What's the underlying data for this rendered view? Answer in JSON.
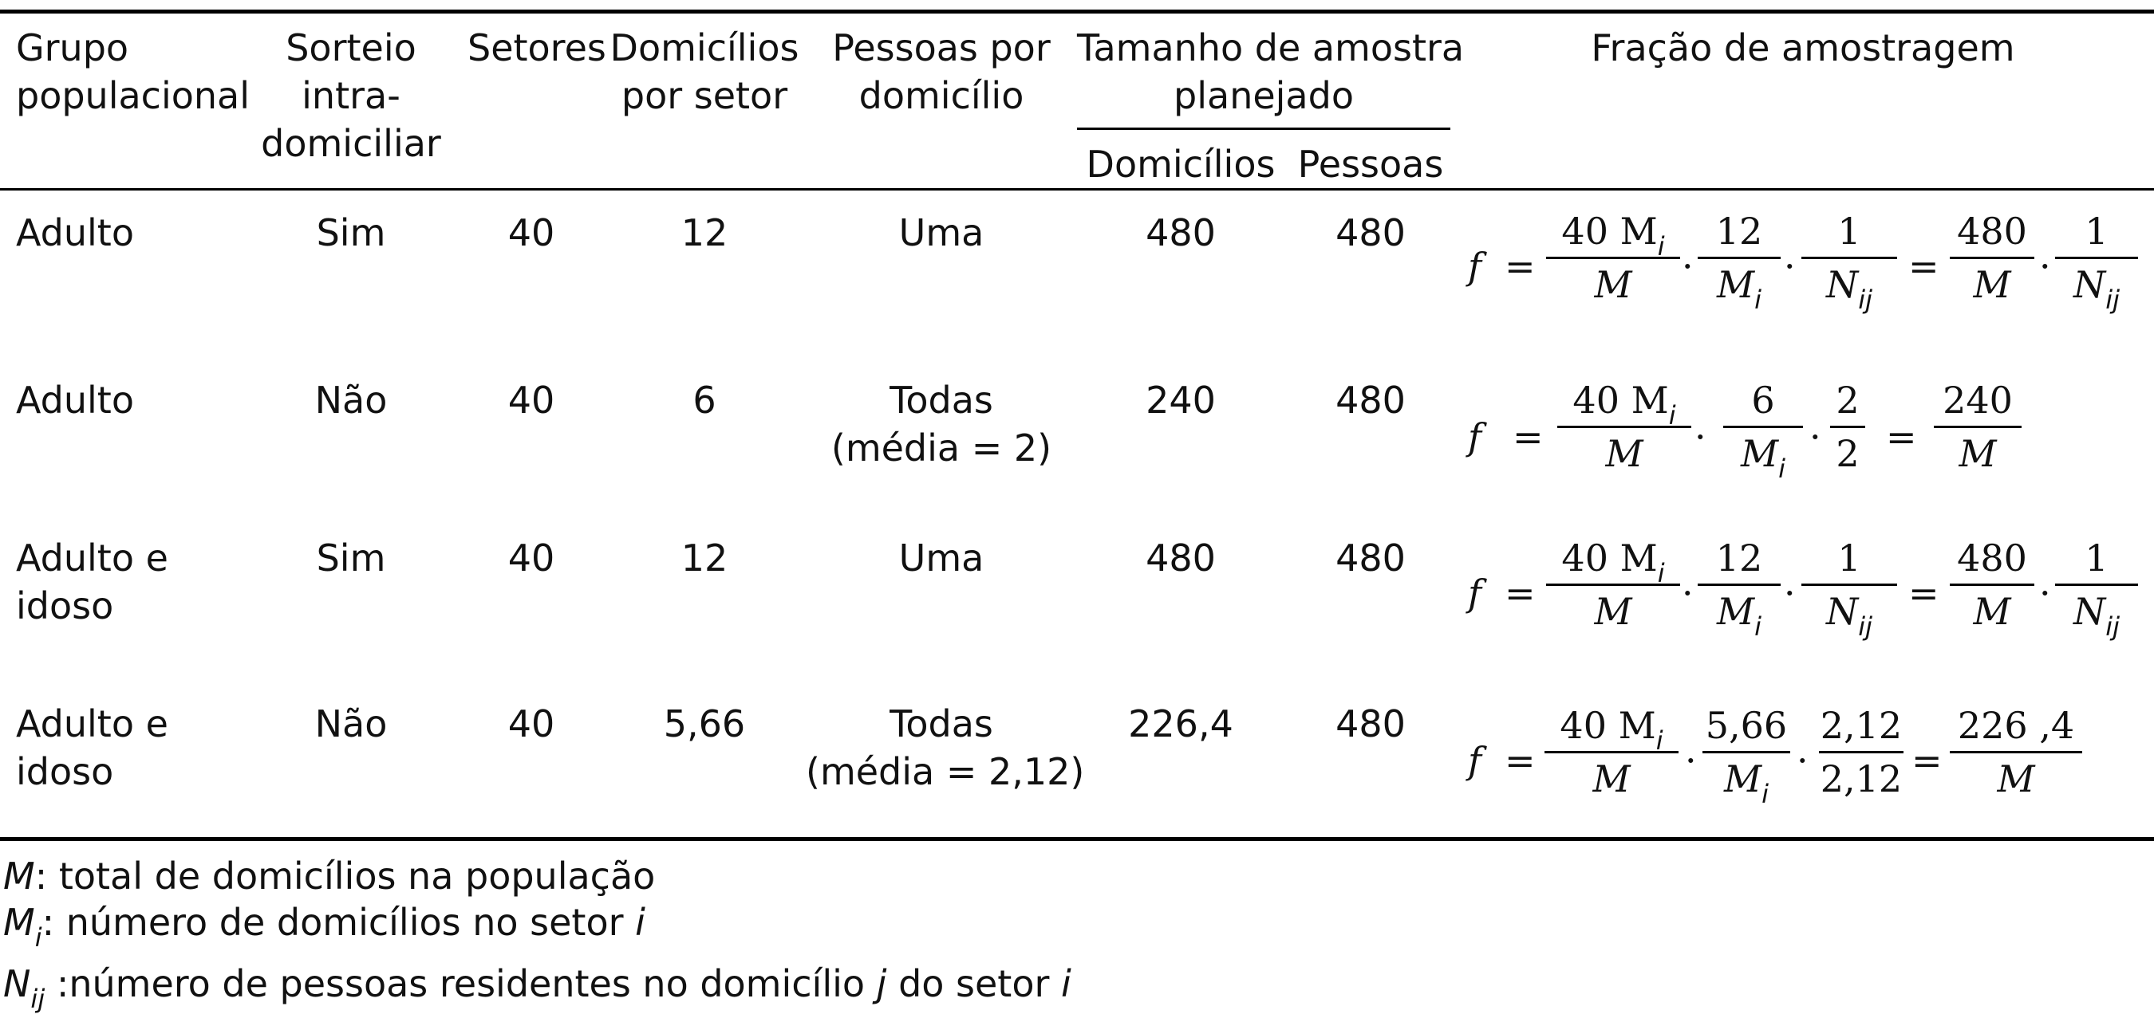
{
  "header": {
    "grupo": [
      "Grupo",
      "populacional"
    ],
    "sorteio": [
      "Sorteio",
      "intra-",
      "domiciliar"
    ],
    "setores": "Setores",
    "domicilios_setor": [
      "Domicílios",
      "por setor"
    ],
    "pessoas_domicilio": [
      "Pessoas por",
      "domicílio"
    ],
    "tamanho": [
      "Tamanho de amostra",
      "planejado"
    ],
    "sub_domicilios": "Domicílios",
    "sub_pessoas": "Pessoas",
    "fracao": "Fração de amostragem"
  },
  "rows": [
    {
      "grupo": [
        "Adulto"
      ],
      "sorteio": "Sim",
      "setores": "40",
      "dom_setor": "12",
      "pessoas": [
        "Uma"
      ],
      "tam_dom": "480",
      "tam_pes": "480",
      "formula": {
        "f": "f",
        "eq": "=",
        "dot": "·",
        "t1_num": "40 M",
        "t1_num_sub": "i",
        "t1_den": "M",
        "t2_num": "12",
        "t2_den": "M",
        "t2_den_sub": "i",
        "t3_num": "1",
        "t3_den": "N",
        "t3_den_sub": "ij",
        "r1_num": "480",
        "r1_den": "M",
        "r2_num": "1",
        "r2_den": "N",
        "r2_den_sub": "ij"
      }
    },
    {
      "grupo": [
        "Adulto"
      ],
      "sorteio": "Não",
      "setores": "40",
      "dom_setor": "6",
      "pessoas": [
        "Todas",
        "(média = 2)"
      ],
      "tam_dom": "240",
      "tam_pes": "480",
      "formula": {
        "f": "f",
        "eq": "=",
        "dot": "·",
        "t1_num": "40 M",
        "t1_num_sub": "i",
        "t1_den": "M",
        "t2_num": "6",
        "t2_den": "M",
        "t2_den_sub": "i",
        "t3_num": "2",
        "t3_den": "2",
        "r1_num": "240",
        "r1_den": "M"
      }
    },
    {
      "grupo": [
        "Adulto e",
        "idoso"
      ],
      "sorteio": "Sim",
      "setores": "40",
      "dom_setor": "12",
      "pessoas": [
        "Uma"
      ],
      "tam_dom": "480",
      "tam_pes": "480",
      "formula": {
        "f": "f",
        "eq": "=",
        "dot": "·",
        "t1_num": "40 M",
        "t1_num_sub": "i",
        "t1_den": "M",
        "t2_num": "12",
        "t2_den": "M",
        "t2_den_sub": "i",
        "t3_num": "1",
        "t3_den": "N",
        "t3_den_sub": "ij",
        "r1_num": "480",
        "r1_den": "M",
        "r2_num": "1",
        "r2_den": "N",
        "r2_den_sub": "ij"
      }
    },
    {
      "grupo": [
        "Adulto e",
        "idoso"
      ],
      "sorteio": "Não",
      "setores": "40",
      "dom_setor": "5,66",
      "pessoas": [
        "Todas",
        "(média = 2,12)"
      ],
      "tam_dom": "226,4",
      "tam_pes": "480",
      "formula": {
        "f": "f",
        "eq": "=",
        "dot": "·",
        "t1_num": "40 M",
        "t1_num_sub": "i",
        "t1_den": "M",
        "t2_num": "5,66",
        "t2_den": "M",
        "t2_den_sub": "i",
        "t3_num": "2,12",
        "t3_den": "2,12",
        "r1_num": "226 ,4",
        "r1_den": "M"
      }
    }
  ],
  "notes": [
    {
      "sym": "M",
      "text": ": total de domicílios na população"
    },
    {
      "sym": "M",
      "sub": "i",
      "text": ": número de domicílios no setor ",
      "tail": "i"
    },
    {
      "sym": "N",
      "sub": "ij",
      "text": " :número de pessoas residentes no domicílio ",
      "mid": "j",
      "text2": " do setor ",
      "tail": "i"
    }
  ]
}
